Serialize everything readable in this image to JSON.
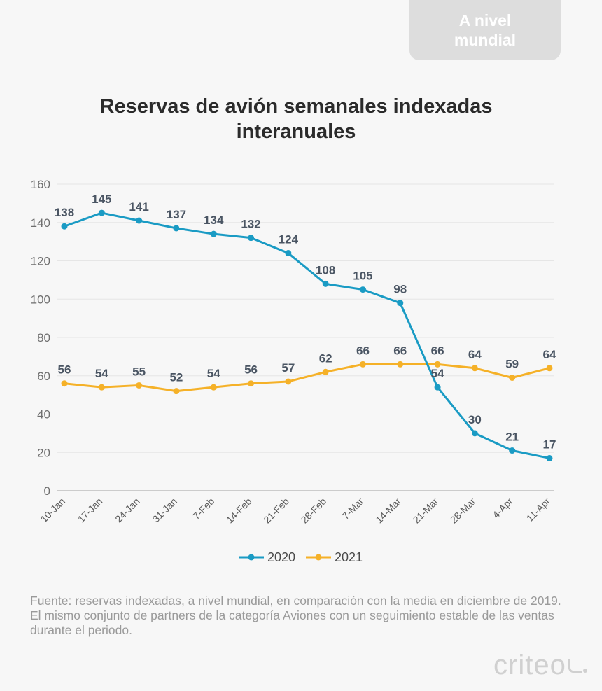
{
  "region_tab": {
    "label": "A nivel\nmundial"
  },
  "chart_data": {
    "type": "line",
    "title": "Reservas de avión semanales indexadas interanuales",
    "xlabel": "",
    "ylabel": "",
    "categories": [
      "10-Jan",
      "17-Jan",
      "24-Jan",
      "31-Jan",
      "7-Feb",
      "14-Feb",
      "21-Feb",
      "28-Feb",
      "7-Mar",
      "14-Mar",
      "21-Mar",
      "28-Mar",
      "4-Apr",
      "11-Apr"
    ],
    "y_ticks": [
      0,
      20,
      40,
      60,
      80,
      100,
      120,
      140,
      160
    ],
    "ylim": [
      0,
      160
    ],
    "grid": "horizontal",
    "legend_position": "bottom",
    "series": [
      {
        "name": "2020",
        "color": "#1a9bc4",
        "values": [
          138,
          145,
          141,
          137,
          134,
          132,
          124,
          108,
          105,
          98,
          54,
          30,
          21,
          17
        ]
      },
      {
        "name": "2021",
        "color": "#f5b128",
        "values": [
          56,
          54,
          55,
          52,
          54,
          56,
          57,
          62,
          66,
          66,
          66,
          64,
          59,
          64
        ]
      }
    ]
  },
  "source_note": "Fuente: reservas indexadas, a nivel mundial, en comparación con la media en diciembre de 2019. El mismo conjunto de partners de la categoría Aviones con un seguimiento estable de las ventas durante el periodo.",
  "brand": {
    "name": "criteo"
  }
}
